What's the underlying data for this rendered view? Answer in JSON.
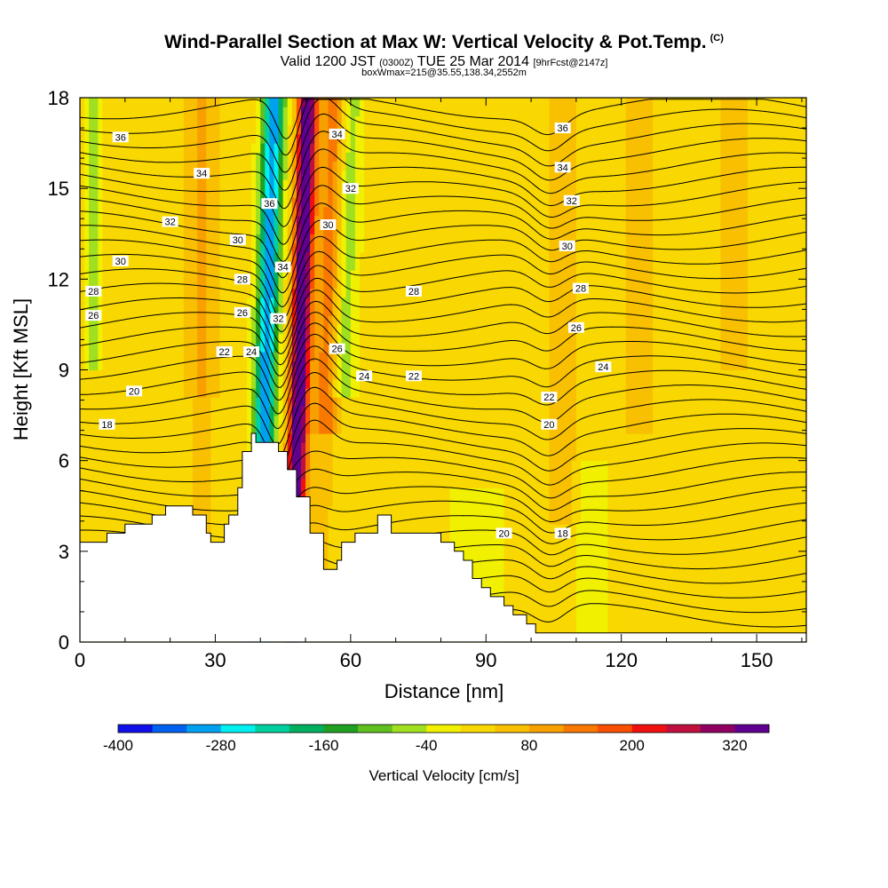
{
  "title": {
    "main": "Wind-Parallel Section at Max W: Vertical Velocity & Pot.Temp.",
    "main_mark": "(C)",
    "valid_a": "Valid 1200 JST",
    "valid_b": "(0300Z)",
    "valid_c": "TUE 25 Mar 2014",
    "valid_d": "[9hrFcst@2147z]",
    "box": "boxWmax=215@35.55,138.34,2552m"
  },
  "chart_data": {
    "type": "heatmap",
    "xlabel": "Distance [nm]",
    "ylabel": "Height [Kft MSL]",
    "xlim": [
      0,
      161
    ],
    "ylim": [
      0,
      18
    ],
    "xticks": [
      0,
      30,
      60,
      90,
      120,
      150
    ],
    "yticks": [
      0,
      3,
      6,
      9,
      12,
      15,
      18
    ],
    "colorbar": {
      "label": "Vertical Velocity [cm/s]",
      "levels": [
        -400,
        -360,
        -320,
        -280,
        -240,
        -200,
        -160,
        -120,
        -80,
        -40,
        0,
        40,
        80,
        120,
        160,
        200,
        240,
        280,
        320,
        360
      ],
      "tick_labels": [
        -400,
        -280,
        -160,
        -40,
        80,
        200,
        320
      ],
      "colors": [
        "#1010e8",
        "#0060f0",
        "#00a0f0",
        "#00f0f0",
        "#00d0a0",
        "#00b060",
        "#20a020",
        "#60c020",
        "#a0e020",
        "#f0f000",
        "#f8d800",
        "#f8c000",
        "#f8a000",
        "#f87800",
        "#f85000",
        "#f01010",
        "#c01040",
        "#900060",
        "#600090"
      ]
    },
    "terrain": [
      [
        0,
        3.3
      ],
      [
        6,
        3.3
      ],
      [
        6,
        3.6
      ],
      [
        10,
        3.6
      ],
      [
        10,
        3.9
      ],
      [
        16,
        3.9
      ],
      [
        16,
        4.2
      ],
      [
        19,
        4.2
      ],
      [
        19,
        4.5
      ],
      [
        25,
        4.5
      ],
      [
        25,
        4.2
      ],
      [
        28,
        4.2
      ],
      [
        28,
        3.6
      ],
      [
        29,
        3.6
      ],
      [
        29,
        3.3
      ],
      [
        32,
        3.3
      ],
      [
        32,
        3.9
      ],
      [
        33,
        3.9
      ],
      [
        33,
        4.2
      ],
      [
        35,
        4.2
      ],
      [
        35,
        5.1
      ],
      [
        36,
        5.1
      ],
      [
        36,
        6.3
      ],
      [
        38,
        6.3
      ],
      [
        38,
        6.9
      ],
      [
        39,
        6.9
      ],
      [
        39,
        6.6
      ],
      [
        44,
        6.6
      ],
      [
        44,
        6.3
      ],
      [
        46,
        6.3
      ],
      [
        46,
        5.7
      ],
      [
        48,
        5.7
      ],
      [
        48,
        4.8
      ],
      [
        51,
        4.8
      ],
      [
        51,
        3.6
      ],
      [
        54,
        3.6
      ],
      [
        54,
        2.4
      ],
      [
        57,
        2.4
      ],
      [
        57,
        2.7
      ],
      [
        58,
        2.7
      ],
      [
        58,
        3.3
      ],
      [
        61,
        3.3
      ],
      [
        61,
        3.6
      ],
      [
        66,
        3.6
      ],
      [
        66,
        4.2
      ],
      [
        69,
        4.2
      ],
      [
        69,
        3.6
      ],
      [
        80,
        3.6
      ],
      [
        80,
        3.3
      ],
      [
        83,
        3.3
      ],
      [
        83,
        3.0
      ],
      [
        85,
        3.0
      ],
      [
        85,
        2.7
      ],
      [
        87,
        2.7
      ],
      [
        87,
        2.1
      ],
      [
        89,
        2.1
      ],
      [
        89,
        1.8
      ],
      [
        91,
        1.8
      ],
      [
        91,
        1.5
      ],
      [
        94,
        1.5
      ],
      [
        94,
        1.2
      ],
      [
        96,
        1.2
      ],
      [
        96,
        0.9
      ],
      [
        99,
        0.9
      ],
      [
        99,
        0.6
      ],
      [
        101,
        0.6
      ],
      [
        101,
        0.3
      ],
      [
        161,
        0.3
      ],
      [
        161,
        0
      ]
    ],
    "isentrope_labels": [
      {
        "text": "36",
        "x": 9,
        "y": 16.7
      },
      {
        "text": "34",
        "x": 27,
        "y": 15.5
      },
      {
        "text": "32",
        "x": 20,
        "y": 13.9
      },
      {
        "text": "30",
        "x": 9,
        "y": 12.6
      },
      {
        "text": "28",
        "x": 3,
        "y": 11.6
      },
      {
        "text": "26",
        "x": 3,
        "y": 10.8
      },
      {
        "text": "20",
        "x": 12,
        "y": 8.3
      },
      {
        "text": "18",
        "x": 6,
        "y": 7.2
      },
      {
        "text": "22",
        "x": 32,
        "y": 9.6
      },
      {
        "text": "24",
        "x": 38,
        "y": 9.6
      },
      {
        "text": "26",
        "x": 36,
        "y": 10.9
      },
      {
        "text": "28",
        "x": 36,
        "y": 12.0
      },
      {
        "text": "30",
        "x": 35,
        "y": 13.3
      },
      {
        "text": "32",
        "x": 44,
        "y": 10.7
      },
      {
        "text": "34",
        "x": 45,
        "y": 12.4
      },
      {
        "text": "36",
        "x": 42,
        "y": 14.5
      },
      {
        "text": "34",
        "x": 57,
        "y": 16.8
      },
      {
        "text": "32",
        "x": 60,
        "y": 15.0
      },
      {
        "text": "30",
        "x": 55,
        "y": 13.8
      },
      {
        "text": "28",
        "x": 74,
        "y": 11.6
      },
      {
        "text": "26",
        "x": 57,
        "y": 9.7
      },
      {
        "text": "24",
        "x": 63,
        "y": 8.8
      },
      {
        "text": "22",
        "x": 74,
        "y": 8.8
      },
      {
        "text": "36",
        "x": 107,
        "y": 17.0
      },
      {
        "text": "34",
        "x": 107,
        "y": 15.7
      },
      {
        "text": "32",
        "x": 109,
        "y": 14.6
      },
      {
        "text": "30",
        "x": 108,
        "y": 13.1
      },
      {
        "text": "28",
        "x": 111,
        "y": 11.7
      },
      {
        "text": "26",
        "x": 110,
        "y": 10.4
      },
      {
        "text": "24",
        "x": 116,
        "y": 9.1
      },
      {
        "text": "22",
        "x": 104,
        "y": 8.1
      },
      {
        "text": "20",
        "x": 104,
        "y": 7.2
      },
      {
        "text": "20",
        "x": 94,
        "y": 3.6
      },
      {
        "text": "18",
        "x": 107,
        "y": 3.6
      }
    ]
  }
}
